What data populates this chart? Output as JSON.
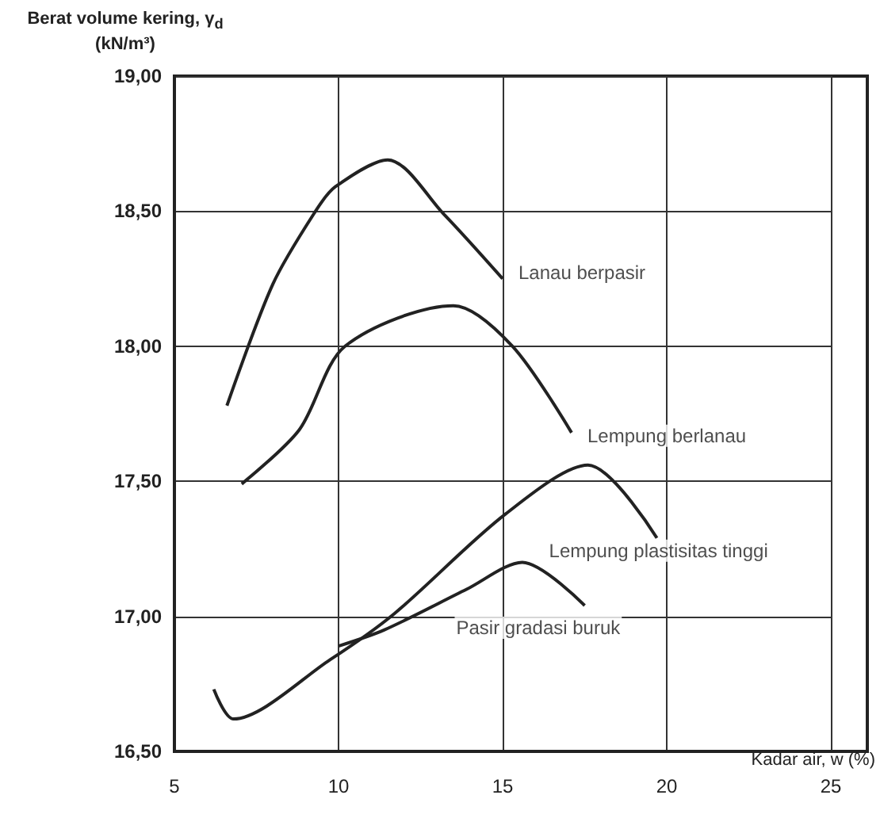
{
  "chart_data": {
    "type": "line",
    "ylabel": "Berat volume kering, γ$_{d}$ (kN/m³)",
    "xlabel": "Kadar air, w (%)",
    "xlim": [
      5,
      25
    ],
    "xticks": [
      5,
      10,
      15,
      20,
      25
    ],
    "ylim": [
      16.5,
      19
    ],
    "yticks": [
      {
        "value": 16.5,
        "label": "16,50"
      },
      {
        "value": 17,
        "label": "17,00"
      },
      {
        "value": 17.5,
        "label": "17,50"
      },
      {
        "value": 18,
        "label": "18,00"
      },
      {
        "value": 18.5,
        "label": "18,50"
      },
      {
        "value": 19,
        "label": "19,00"
      }
    ],
    "grid": true,
    "marker": "none",
    "line_style": "solid",
    "series": [
      {
        "name": "Lanau berpasir",
        "color": "#222222",
        "x": [
          6.6,
          8.0,
          9.3,
          9.9,
          11.5,
          13.2,
          15.0
        ],
        "values": [
          17.78,
          18.23,
          18.5,
          18.59,
          18.69,
          18.49,
          18.25
        ]
      },
      {
        "name": "Lempung berlanau",
        "color": "#222222",
        "x": [
          7.05,
          8.8,
          10.2,
          13.5,
          15.3,
          17.1
        ],
        "values": [
          17.49,
          17.69,
          18.0,
          18.15,
          18.0,
          17.68
        ]
      },
      {
        "name": "Lempung plastisitas tinggi",
        "color": "#222222",
        "x": [
          6.2,
          6.8,
          9.75,
          11.7,
          15.1,
          17.6,
          19.7
        ],
        "values": [
          16.73,
          16.62,
          16.84,
          17.01,
          17.38,
          17.56,
          17.29
        ]
      },
      {
        "name": "Pasir gradasi buruk",
        "color": "#222222",
        "x": [
          10.0,
          11.4,
          13.9,
          15.6,
          17.5
        ],
        "values": [
          16.89,
          16.95,
          17.1,
          17.2,
          17.04
        ]
      }
    ]
  }
}
